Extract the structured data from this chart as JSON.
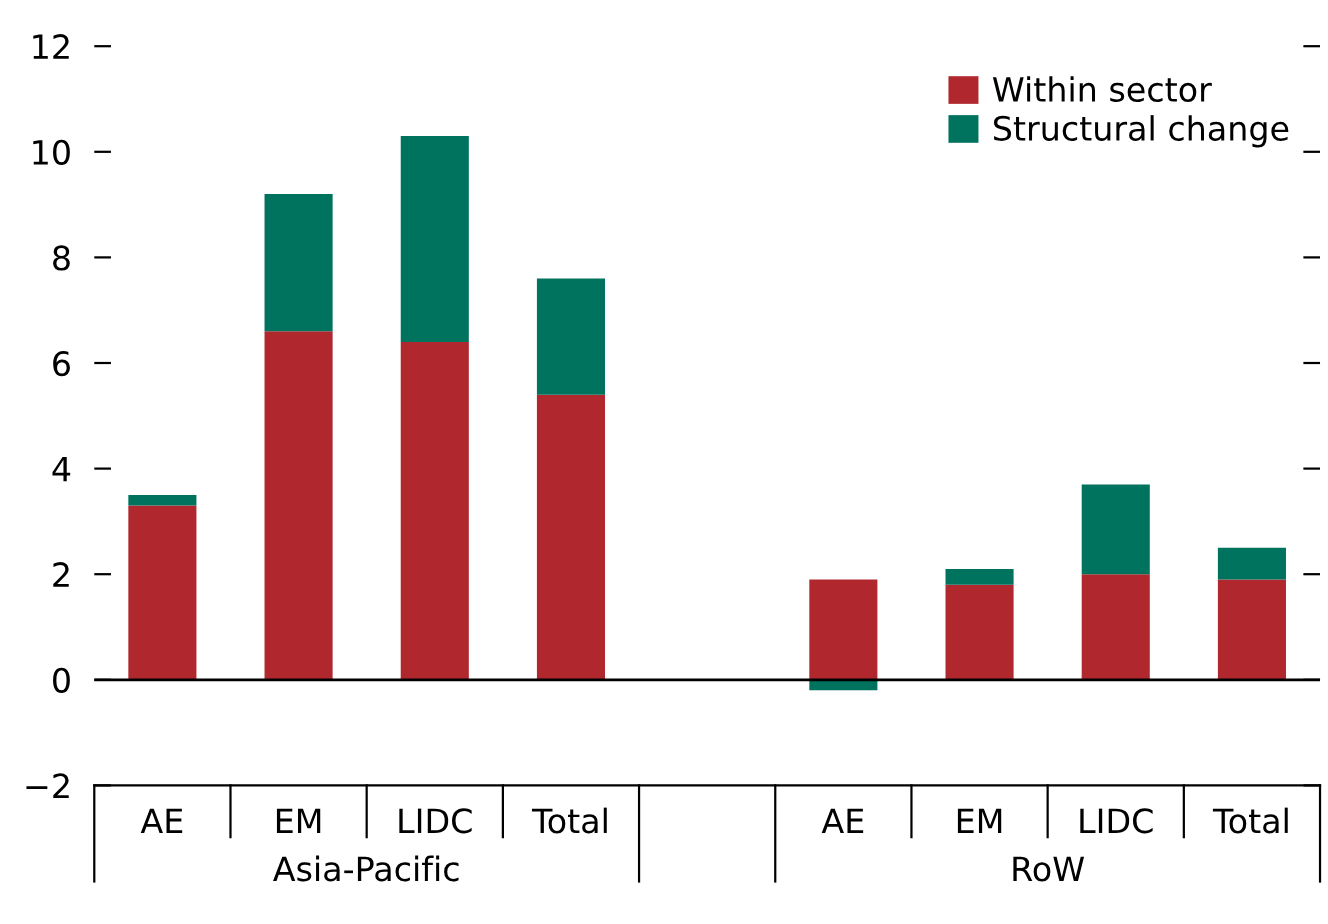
{
  "chart_data": {
    "type": "bar",
    "stacked": true,
    "categories": [
      "AE",
      "EM",
      "LIDC",
      "Total",
      null,
      "AE",
      "EM",
      "LIDC",
      "Total"
    ],
    "series": [
      {
        "name": "Within sector",
        "color": "#b0282e",
        "values": [
          3.3,
          6.6,
          6.4,
          5.4,
          null,
          1.9,
          1.8,
          2.0,
          1.9
        ]
      },
      {
        "name": "Structural change",
        "color": "#00735f",
        "values": [
          0.2,
          2.6,
          3.9,
          2.2,
          null,
          -0.2,
          0.3,
          1.7,
          0.6
        ]
      }
    ],
    "annotations": [
      "Asia-Pacific",
      "RoW"
    ],
    "ref_lines": [
      {
        "axis": "y",
        "value": 0,
        "color": "#000000"
      }
    ],
    "ylim": [
      -2,
      12
    ],
    "yticks": [
      {
        "value": -2,
        "label": "−2"
      },
      0,
      2,
      4,
      6,
      8,
      10,
      12
    ],
    "grid": false,
    "legend": "top right"
  }
}
